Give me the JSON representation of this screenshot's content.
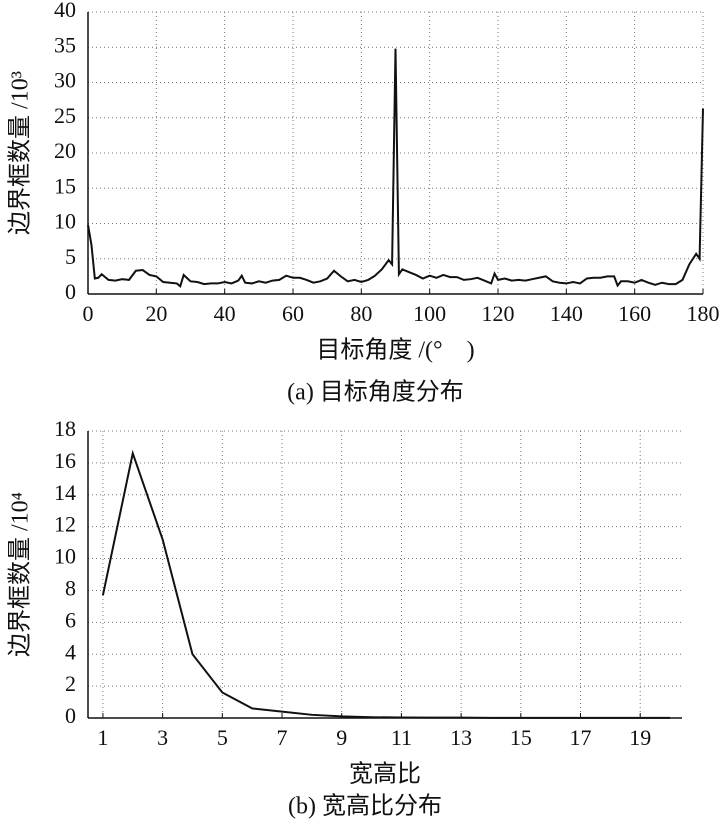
{
  "chart_data": [
    {
      "type": "line",
      "ylabel": "边界框数量 /10³",
      "xlabel": "目标角度 /(°　)",
      "caption": "(a) 目标角度分布",
      "xlim": [
        0,
        180
      ],
      "xticks": [
        0,
        20,
        40,
        60,
        80,
        100,
        120,
        140,
        160,
        180
      ],
      "ylim": [
        0,
        40
      ],
      "yticks": [
        0,
        5,
        10,
        15,
        20,
        25,
        30,
        35,
        40
      ],
      "grid": true,
      "series": [
        {
          "color": "#111111",
          "x": [
            0,
            1,
            2,
            3,
            4,
            6,
            8,
            10,
            12,
            14,
            16,
            18,
            20,
            22,
            24,
            26,
            27,
            28,
            30,
            32,
            34,
            36,
            38,
            40,
            42,
            44,
            45,
            46,
            48,
            50,
            52,
            54,
            56,
            58,
            60,
            62,
            64,
            66,
            68,
            70,
            72,
            74,
            76,
            78,
            80,
            82,
            84,
            86,
            88,
            89,
            90,
            91,
            92,
            94,
            96,
            98,
            100,
            102,
            104,
            106,
            108,
            110,
            112,
            114,
            116,
            118,
            119,
            120,
            122,
            124,
            126,
            128,
            130,
            132,
            134,
            136,
            138,
            140,
            142,
            144,
            146,
            148,
            150,
            152,
            154,
            155,
            156,
            158,
            160,
            162,
            164,
            166,
            168,
            170,
            172,
            174,
            176,
            178,
            179,
            180
          ],
          "values": [
            9.8,
            7,
            2.2,
            2.3,
            2.8,
            2.0,
            1.9,
            2.1,
            2.0,
            3.3,
            3.4,
            2.7,
            2.5,
            1.7,
            1.6,
            1.5,
            1.1,
            2.7,
            1.8,
            1.7,
            1.4,
            1.5,
            1.5,
            1.7,
            1.5,
            1.9,
            2.6,
            1.6,
            1.5,
            1.8,
            1.6,
            1.9,
            2.0,
            2.6,
            2.3,
            2.3,
            2.0,
            1.6,
            1.8,
            2.2,
            3.3,
            2.5,
            1.8,
            2.0,
            1.7,
            2.0,
            2.6,
            3.5,
            4.8,
            4.2,
            34.8,
            2.8,
            3.5,
            3.1,
            2.7,
            2.2,
            2.6,
            2.3,
            2.7,
            2.4,
            2.4,
            2.0,
            2.1,
            2.3,
            1.9,
            1.5,
            2.9,
            2.0,
            2.2,
            1.9,
            2.0,
            1.9,
            2.1,
            2.3,
            2.5,
            1.8,
            1.6,
            1.5,
            1.7,
            1.5,
            2.2,
            2.3,
            2.3,
            2.5,
            2.5,
            1.2,
            1.8,
            1.8,
            1.6,
            2.0,
            1.6,
            1.3,
            1.6,
            1.4,
            1.4,
            2.0,
            4.2,
            5.7,
            5.0,
            26.3
          ]
        }
      ]
    },
    {
      "type": "line",
      "ylabel": "边界框数量 /10⁴",
      "xlabel": "宽高比",
      "caption": "(b) 宽高比分布",
      "xlim": [
        0.5,
        20.4
      ],
      "xticks": [
        1,
        3,
        5,
        7,
        9,
        11,
        13,
        15,
        17,
        19
      ],
      "ylim": [
        0,
        18
      ],
      "yticks": [
        0,
        2,
        4,
        6,
        8,
        10,
        12,
        14,
        16,
        18
      ],
      "grid": true,
      "series": [
        {
          "color": "#111111",
          "x": [
            1,
            2,
            3,
            4,
            5,
            6,
            7,
            8,
            9,
            10,
            11,
            12,
            13,
            14,
            15,
            16,
            17,
            18,
            19,
            20
          ],
          "values": [
            7.7,
            16.6,
            11.2,
            4.0,
            1.6,
            0.6,
            0.4,
            0.2,
            0.1,
            0.05,
            0.03,
            0.02,
            0.02,
            0.01,
            0.01,
            0.01,
            0.01,
            0.01,
            0.01,
            0.01
          ]
        }
      ]
    }
  ]
}
